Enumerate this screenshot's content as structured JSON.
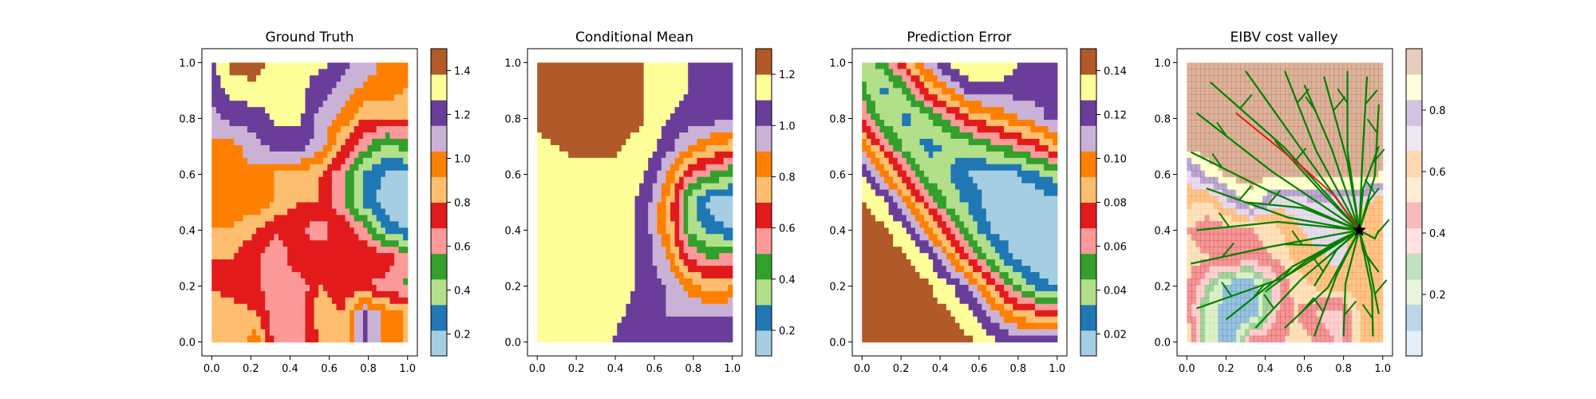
{
  "figure": {
    "type": "contourf-subplots"
  },
  "colors": {
    "paired": [
      "#a6cee3",
      "#1f78b4",
      "#b2df8a",
      "#33a02c",
      "#fb9a99",
      "#e31a1c",
      "#fdbf6f",
      "#ff7f00",
      "#cab2d6",
      "#6a3d9a",
      "#ffff99",
      "#b15928"
    ],
    "path": "#008000",
    "best_path": "#e31a1c",
    "marker": "#000000"
  },
  "chart_data": [
    {
      "type": "heatmap",
      "title": "Ground Truth",
      "xlim": [
        0,
        1
      ],
      "ylim": [
        0,
        1
      ],
      "xticks": [
        "0.0",
        "0.2",
        "0.4",
        "0.6",
        "0.8",
        "1.0"
      ],
      "yticks": [
        "0.0",
        "0.2",
        "0.4",
        "0.6",
        "0.8",
        "1.0"
      ],
      "colorbar": {
        "range": [
          0.1,
          1.5
        ],
        "ticks": [
          {
            "v": 0.2,
            "label": "0.2"
          },
          {
            "v": 0.4,
            "label": "0.4"
          },
          {
            "v": 0.6,
            "label": "0.6"
          },
          {
            "v": 0.8,
            "label": "0.8"
          },
          {
            "v": 1.0,
            "label": "1.0"
          },
          {
            "v": 1.2,
            "label": "1.2"
          },
          {
            "v": 1.4,
            "label": "1.4"
          }
        ]
      },
      "field": [
        [
          0.8,
          0.8,
          1.0,
          0.6,
          0.6,
          0.8,
          0.8,
          1.2,
          1.0,
          0.9
        ],
        [
          0.9,
          0.9,
          0.8,
          0.6,
          0.6,
          0.9,
          0.8,
          1.2,
          1.0,
          0.9
        ],
        [
          0.8,
          0.7,
          0.7,
          0.6,
          0.6,
          0.8,
          0.7,
          0.7,
          0.6,
          0.55
        ],
        [
          0.8,
          0.8,
          0.7,
          0.6,
          0.8,
          0.8,
          0.8,
          0.8,
          0.8,
          0.6
        ],
        [
          0.9,
          0.9,
          0.8,
          0.7,
          0.7,
          0.6,
          0.8,
          0.6,
          0.3,
          0.2
        ],
        [
          1.0,
          1.0,
          1.0,
          0.9,
          0.8,
          0.8,
          0.6,
          0.3,
          0.15,
          0.1
        ],
        [
          1.0,
          1.0,
          1.0,
          0.9,
          0.9,
          0.8,
          0.6,
          0.3,
          0.2,
          0.2
        ],
        [
          1.0,
          1.0,
          1.1,
          1.2,
          1.2,
          1.1,
          0.8,
          0.6,
          0.4,
          0.5
        ],
        [
          1.1,
          1.2,
          1.2,
          1.3,
          1.3,
          1.1,
          1.0,
          0.8,
          0.8,
          0.8
        ],
        [
          1.2,
          1.3,
          1.35,
          1.3,
          1.3,
          1.2,
          1.1,
          1.0,
          1.0,
          0.9
        ],
        [
          1.25,
          1.45,
          1.45,
          1.3,
          1.3,
          1.3,
          1.2,
          1.1,
          1.0,
          1.0
        ]
      ]
    },
    {
      "type": "heatmap",
      "title": "Conditional Mean",
      "xlim": [
        0,
        1
      ],
      "ylim": [
        0,
        1
      ],
      "xticks": [
        "0.0",
        "0.2",
        "0.4",
        "0.6",
        "0.8",
        "1.0"
      ],
      "yticks": [
        "0.0",
        "0.2",
        "0.4",
        "0.6",
        "0.8",
        "1.0"
      ],
      "colorbar": {
        "range": [
          0.1,
          1.3
        ],
        "ticks": [
          {
            "v": 0.2,
            "label": "0.2"
          },
          {
            "v": 0.4,
            "label": "0.4"
          },
          {
            "v": 0.6,
            "label": "0.6"
          },
          {
            "v": 0.8,
            "label": "0.8"
          },
          {
            "v": 1.0,
            "label": "1.0"
          },
          {
            "v": 1.2,
            "label": "1.2"
          }
        ]
      },
      "field": [
        [
          1.15,
          1.15,
          1.15,
          1.15,
          1.05,
          1.0,
          1.0,
          1.0,
          1.0,
          1.0
        ],
        [
          1.15,
          1.15,
          1.15,
          1.15,
          1.1,
          1.0,
          1.0,
          1.0,
          1.0,
          1.0
        ],
        [
          1.15,
          1.15,
          1.15,
          1.15,
          1.15,
          1.05,
          1.0,
          0.85,
          0.75,
          0.8
        ],
        [
          1.15,
          1.15,
          1.15,
          1.15,
          1.15,
          1.05,
          0.9,
          0.6,
          0.5,
          0.55
        ],
        [
          1.15,
          1.15,
          1.15,
          1.15,
          1.15,
          1.05,
          0.8,
          0.4,
          0.25,
          0.2
        ],
        [
          1.15,
          1.15,
          1.15,
          1.15,
          1.15,
          1.05,
          0.8,
          0.35,
          0.15,
          0.12
        ],
        [
          1.15,
          1.15,
          1.15,
          1.15,
          1.15,
          1.1,
          0.9,
          0.6,
          0.5,
          0.4
        ],
        [
          1.15,
          1.2,
          1.25,
          1.25,
          1.2,
          1.15,
          1.05,
          0.9,
          0.8,
          0.75
        ],
        [
          1.25,
          1.3,
          1.3,
          1.25,
          1.25,
          1.2,
          1.1,
          1.05,
          1.05,
          1.0
        ],
        [
          1.35,
          1.4,
          1.35,
          1.3,
          1.25,
          1.2,
          1.15,
          1.1,
          1.05,
          1.05
        ],
        [
          1.4,
          1.45,
          1.4,
          1.3,
          1.25,
          1.2,
          1.15,
          1.1,
          1.05,
          1.05
        ]
      ]
    },
    {
      "type": "heatmap",
      "title": "Prediction Error",
      "xlim": [
        0,
        1
      ],
      "ylim": [
        0,
        1
      ],
      "xticks": [
        "0.0",
        "0.2",
        "0.4",
        "0.6",
        "0.8",
        "1.0"
      ],
      "yticks": [
        "0.0",
        "0.2",
        "0.4",
        "0.6",
        "0.8",
        "1.0"
      ],
      "colorbar": {
        "range": [
          0.01,
          0.15
        ],
        "ticks": [
          {
            "v": 0.02,
            "label": "0.02"
          },
          {
            "v": 0.04,
            "label": "0.04"
          },
          {
            "v": 0.06,
            "label": "0.06"
          },
          {
            "v": 0.08,
            "label": "0.08"
          },
          {
            "v": 0.1,
            "label": "0.10"
          },
          {
            "v": 0.12,
            "label": "0.12"
          },
          {
            "v": 0.14,
            "label": "0.14"
          }
        ]
      },
      "field": [
        [
          0.145,
          0.145,
          0.145,
          0.145,
          0.145,
          0.14,
          0.13,
          0.125,
          0.12,
          0.12
        ],
        [
          0.145,
          0.145,
          0.145,
          0.145,
          0.14,
          0.13,
          0.11,
          0.09,
          0.08,
          0.08
        ],
        [
          0.145,
          0.145,
          0.145,
          0.14,
          0.13,
          0.11,
          0.08,
          0.05,
          0.03,
          0.02
        ],
        [
          0.145,
          0.145,
          0.14,
          0.13,
          0.1,
          0.07,
          0.04,
          0.02,
          0.01,
          0.01
        ],
        [
          0.145,
          0.14,
          0.13,
          0.1,
          0.07,
          0.04,
          0.02,
          0.015,
          0.02,
          0.01
        ],
        [
          0.14,
          0.13,
          0.1,
          0.07,
          0.04,
          0.03,
          0.015,
          0.02,
          0.01,
          0.02
        ],
        [
          0.13,
          0.1,
          0.07,
          0.04,
          0.035,
          0.02,
          0.02,
          0.02,
          0.03,
          0.04
        ],
        [
          0.1,
          0.07,
          0.04,
          0.03,
          0.035,
          0.04,
          0.05,
          0.06,
          0.07,
          0.09
        ],
        [
          0.07,
          0.04,
          0.03,
          0.04,
          0.06,
          0.08,
          0.09,
          0.1,
          0.11,
          0.12
        ],
        [
          0.05,
          0.03,
          0.05,
          0.08,
          0.1,
          0.12,
          0.12,
          0.12,
          0.12,
          0.12
        ],
        [
          0.04,
          0.05,
          0.08,
          0.11,
          0.13,
          0.14,
          0.14,
          0.13,
          0.12,
          0.12
        ]
      ]
    },
    {
      "type": "heatmap",
      "title": "EIBV cost valley",
      "xlim": [
        0,
        1
      ],
      "ylim": [
        0,
        1
      ],
      "xticks": [
        "0.0",
        "0.2",
        "0.4",
        "0.6",
        "0.8",
        "1.0"
      ],
      "yticks": [
        "0.0",
        "0.2",
        "0.4",
        "0.6",
        "0.8",
        "1.0"
      ],
      "colorbar": {
        "range": [
          0,
          1
        ],
        "ticks": [
          {
            "v": 0.2,
            "label": "0.2"
          },
          {
            "v": 0.4,
            "label": "0.4"
          },
          {
            "v": 0.6,
            "label": "0.6"
          },
          {
            "v": 0.8,
            "label": "0.8"
          }
        ]
      },
      "field": [
        [
          0.6,
          0.2,
          0.1,
          0.5,
          0.45,
          0.55,
          0.5,
          0.4,
          0.6,
          0.6
        ],
        [
          0.5,
          0.2,
          0.1,
          0.1,
          0.4,
          0.5,
          0.4,
          0.35,
          0.6,
          0.6
        ],
        [
          0.5,
          0.3,
          0.1,
          0.1,
          0.35,
          0.55,
          0.6,
          0.6,
          0.65,
          0.6
        ],
        [
          0.55,
          0.5,
          0.5,
          0.45,
          0.5,
          0.6,
          0.65,
          0.7,
          0.6,
          0.6
        ],
        [
          0.5,
          0.45,
          0.45,
          0.5,
          0.55,
          0.65,
          0.7,
          0.7,
          0.6,
          0.6
        ],
        [
          0.6,
          0.55,
          0.75,
          0.9,
          0.7,
          0.7,
          0.75,
          0.7,
          0.7,
          0.6
        ],
        [
          0.7,
          0.85,
          0.95,
          0.95,
          0.95,
          0.95,
          0.95,
          0.95,
          0.95,
          0.9
        ],
        [
          0.95,
          0.98,
          0.98,
          0.98,
          0.98,
          0.98,
          0.98,
          0.98,
          0.98,
          0.98
        ],
        [
          0.98,
          0.98,
          0.98,
          0.98,
          0.98,
          0.98,
          0.98,
          0.98,
          0.98,
          0.98
        ],
        [
          0.98,
          0.98,
          0.98,
          0.98,
          0.98,
          0.98,
          0.98,
          0.98,
          0.98,
          0.98
        ],
        [
          0.98,
          0.98,
          0.98,
          0.98,
          0.98,
          0.98,
          0.98,
          0.98,
          0.98,
          0.98
        ]
      ],
      "path_origin": [
        0.88,
        0.4
      ],
      "best_path": [
        [
          0.88,
          0.4
        ],
        [
          0.76,
          0.52
        ],
        [
          0.6,
          0.62
        ],
        [
          0.25,
          0.82
        ]
      ],
      "path_ends": [
        [
          0.05,
          0.82
        ],
        [
          0.12,
          0.93
        ],
        [
          0.3,
          0.97
        ],
        [
          0.5,
          0.97
        ],
        [
          0.6,
          0.92
        ],
        [
          0.7,
          0.95
        ],
        [
          0.82,
          0.97
        ],
        [
          0.92,
          0.95
        ],
        [
          0.98,
          0.85
        ],
        [
          0.98,
          0.7
        ],
        [
          0.98,
          0.55
        ],
        [
          0.98,
          0.4
        ],
        [
          0.98,
          0.25
        ],
        [
          0.98,
          0.1
        ],
        [
          0.95,
          0.02
        ],
        [
          0.8,
          0.02
        ],
        [
          0.65,
          0.02
        ],
        [
          0.5,
          0.05
        ],
        [
          0.35,
          0.05
        ],
        [
          0.2,
          0.08
        ],
        [
          0.05,
          0.12
        ],
        [
          0.02,
          0.28
        ],
        [
          0.05,
          0.4
        ],
        [
          0.1,
          0.55
        ],
        [
          0.02,
          0.68
        ],
        [
          0.3,
          0.5
        ],
        [
          0.5,
          0.35
        ],
        [
          0.4,
          0.18
        ],
        [
          0.65,
          0.2
        ],
        [
          0.45,
          0.72
        ]
      ]
    }
  ]
}
